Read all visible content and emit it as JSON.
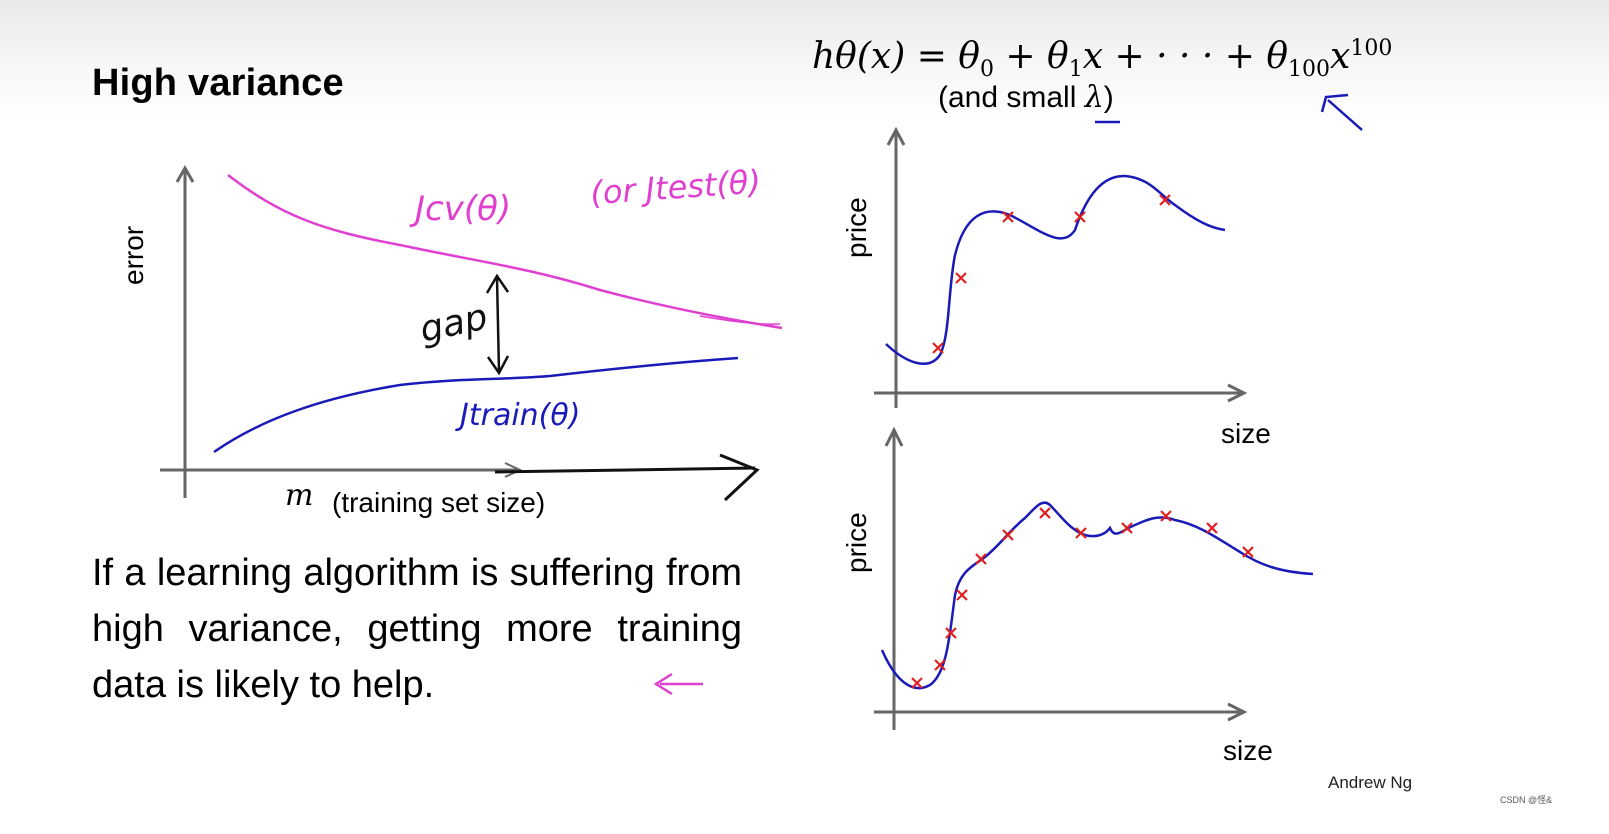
{
  "slide": {
    "title": "High variance",
    "formula": {
      "lhs": "hθ(x) = θ",
      "t0": "0",
      "t1a": " + θ",
      "t1": "1",
      "t1b": "x + · · · + θ",
      "t100": "100",
      "tx": "x",
      "p100": "100"
    },
    "formula_note": {
      "open": "(and small ",
      "lambda": "λ",
      "close": ")"
    },
    "body_text": "If a learning algorithm is suffering from high variance, getting more training data is likely to help.",
    "credit": "Andrew Ng",
    "watermark": "CSDN @怪&"
  },
  "learning_curve": {
    "ylabel": "error",
    "xlabel_symbol": "m",
    "xlabel": "(training set size)",
    "cv_label": "Jcv(θ)",
    "test_label": "(or Jtest(θ)",
    "train_label": "Jtrain(θ)",
    "gap_label": "gap",
    "colors": {
      "cv": "#e040d0",
      "train": "#1a1ab8"
    }
  },
  "fit_plots": [
    {
      "ylabel": "price",
      "xlabel": "size",
      "marker_color": "#e02020",
      "curve_color": "#1a1ab8"
    },
    {
      "ylabel": "price",
      "xlabel": "size",
      "marker_color": "#e02020",
      "curve_color": "#1a1ab8"
    }
  ]
}
